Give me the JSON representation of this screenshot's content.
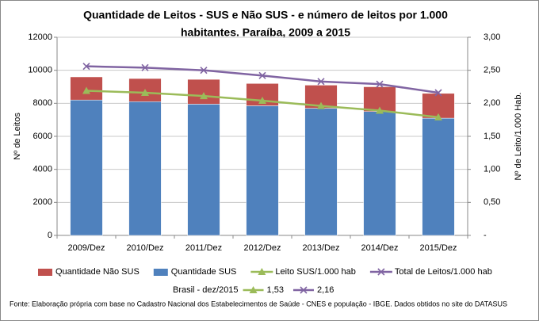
{
  "chart_data": {
    "type": "bar-line",
    "title": [
      "Quantidade de Leitos - SUS e Não SUS - e número de leitos por 1.000",
      "habitantes. Paraíba, 2009 a 2015"
    ],
    "y_label": "Nº de Leitos",
    "y2_label": "Nº de Leito/1.000 Hab.",
    "categories": [
      "2009/Dez",
      "2010/Dez",
      "2011/Dez",
      "2012/Dez",
      "2013/Dez",
      "2014/Dez",
      "2015/Dez"
    ],
    "series": [
      {
        "name": "Quantidade Não SUS",
        "kind": "bar",
        "color": "#c0504d",
        "values": [
          1400,
          1400,
          1500,
          1350,
          1400,
          1500,
          1500
        ]
      },
      {
        "name": "Quantidade SUS",
        "kind": "bar",
        "color": "#4f81bd",
        "values": [
          8200,
          8100,
          7950,
          7850,
          7700,
          7500,
          7100
        ]
      },
      {
        "name": "Leito SUS/1.000 hab",
        "kind": "line",
        "marker": "triangle",
        "axis": "y2",
        "color": "#9bbb59",
        "values": [
          2.19,
          2.16,
          2.11,
          2.04,
          1.96,
          1.89,
          1.79
        ]
      },
      {
        "name": "Total de Leitos/1.000 hab",
        "kind": "line",
        "marker": "x",
        "axis": "y2",
        "color": "#8064a2",
        "values": [
          2.56,
          2.54,
          2.5,
          2.42,
          2.33,
          2.29,
          2.16
        ]
      }
    ],
    "ylim": [
      0,
      12000
    ],
    "yticks": [
      0,
      2000,
      4000,
      6000,
      8000,
      10000,
      12000
    ],
    "y2lim": [
      0,
      3
    ],
    "y2ticks": [
      {
        "value": 0,
        "label": "-"
      },
      {
        "value": 0.5,
        "label": "0,50"
      },
      {
        "value": 1,
        "label": "1,00"
      },
      {
        "value": 1.5,
        "label": "1,50"
      },
      {
        "value": 2,
        "label": "2,00"
      },
      {
        "value": 2.5,
        "label": "2,50"
      },
      {
        "value": 3,
        "label": "3,00"
      }
    ],
    "grid": true,
    "reference": {
      "label": "Brasil -  dez/2015",
      "items": [
        {
          "value": 1.53,
          "label": "1,53",
          "marker": "triangle",
          "color": "#9bbb59"
        },
        {
          "value": 2.16,
          "label": "2,16",
          "marker": "x",
          "color": "#8064a2"
        }
      ]
    },
    "source": "Fonte: Elaboração própria com base no  Cadastro Nacional dos Estabelecimentos de Saúde - CNES e população - IBGE. Dados obtidos no site do DATASUS"
  }
}
